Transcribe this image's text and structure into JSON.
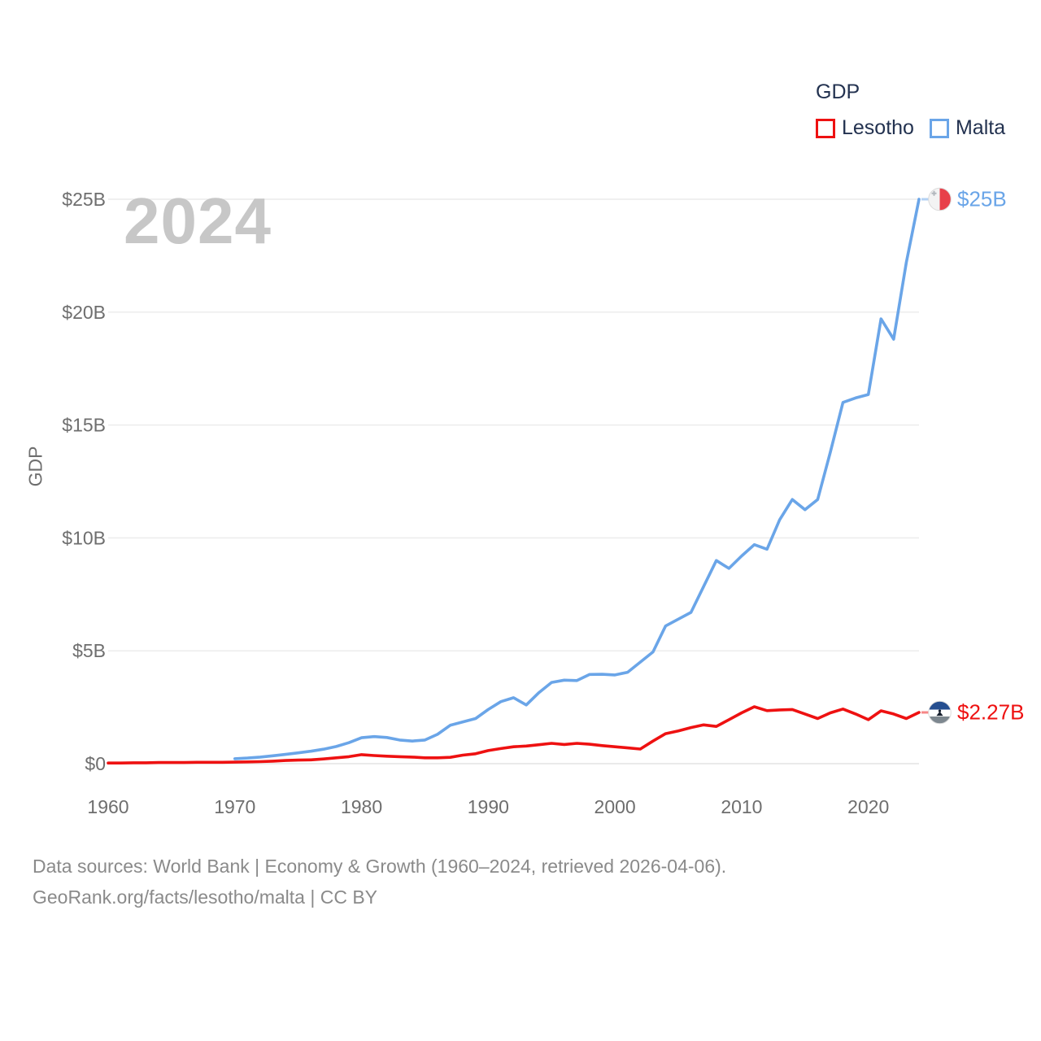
{
  "watermark": "2024",
  "legend": {
    "title": "GDP",
    "items": [
      {
        "label": "Lesotho",
        "color": "#ee1111"
      },
      {
        "label": "Malta",
        "color": "#6aa5e8"
      }
    ]
  },
  "axis": {
    "y_title": "GDP"
  },
  "end_labels": [
    {
      "series": "Malta",
      "text": "$25B",
      "color": "#6aa5e8",
      "flag_icon": "malta-flag-icon"
    },
    {
      "series": "Lesotho",
      "text": "$2.27B",
      "color": "#ee1111",
      "flag_icon": "lesotho-flag-icon"
    }
  ],
  "footer": {
    "line1": "Data sources: World Bank | Economy & Growth (1960–2024, retrieved 2026-04-06).",
    "line2": "GeoRank.org/facts/lesotho/malta | CC BY"
  },
  "chart_data": {
    "type": "line",
    "title": "GDP",
    "xlabel": "",
    "ylabel": "GDP",
    "xlim": [
      1960,
      2024
    ],
    "ylim": [
      0,
      25
    ],
    "grid": true,
    "legend_position": "top-right",
    "units": "billions USD",
    "yticks": [
      {
        "value": 0,
        "label": "$0"
      },
      {
        "value": 5,
        "label": "$5B"
      },
      {
        "value": 10,
        "label": "$10B"
      },
      {
        "value": 15,
        "label": "$15B"
      },
      {
        "value": 20,
        "label": "$20B"
      },
      {
        "value": 25,
        "label": "$25B"
      }
    ],
    "xticks": [
      1960,
      1970,
      1980,
      1990,
      2000,
      2010,
      2020
    ],
    "series": [
      {
        "name": "Lesotho",
        "color": "#ee1111",
        "start_year": 1960,
        "end_value_label": "$2.27B",
        "values": [
          0.03,
          0.03,
          0.04,
          0.04,
          0.05,
          0.05,
          0.05,
          0.06,
          0.06,
          0.06,
          0.07,
          0.08,
          0.09,
          0.11,
          0.14,
          0.16,
          0.17,
          0.21,
          0.26,
          0.31,
          0.4,
          0.36,
          0.33,
          0.31,
          0.29,
          0.26,
          0.26,
          0.28,
          0.38,
          0.44,
          0.58,
          0.67,
          0.75,
          0.78,
          0.84,
          0.9,
          0.85,
          0.9,
          0.86,
          0.8,
          0.75,
          0.7,
          0.65,
          1.0,
          1.33,
          1.45,
          1.6,
          1.72,
          1.65,
          1.95,
          2.25,
          2.52,
          2.35,
          2.38,
          2.4,
          2.2,
          2.0,
          2.25,
          2.42,
          2.2,
          1.95,
          2.34,
          2.2,
          2.0,
          2.27
        ]
      },
      {
        "name": "Malta",
        "color": "#6aa5e8",
        "start_year": 1970,
        "end_value_label": "$25B",
        "values": [
          0.22,
          0.25,
          0.29,
          0.35,
          0.41,
          0.48,
          0.55,
          0.64,
          0.76,
          0.93,
          1.15,
          1.2,
          1.16,
          1.05,
          1.0,
          1.05,
          1.3,
          1.7,
          1.85,
          2.0,
          2.4,
          2.75,
          2.92,
          2.6,
          3.15,
          3.6,
          3.7,
          3.68,
          3.95,
          3.96,
          3.93,
          4.05,
          4.5,
          4.95,
          6.1,
          6.4,
          6.7,
          7.85,
          9.0,
          8.65,
          9.2,
          9.7,
          9.5,
          10.8,
          11.7,
          11.25,
          11.7,
          13.8,
          16.0,
          16.2,
          16.35,
          19.7,
          18.8,
          22.2,
          25.0
        ]
      }
    ]
  }
}
